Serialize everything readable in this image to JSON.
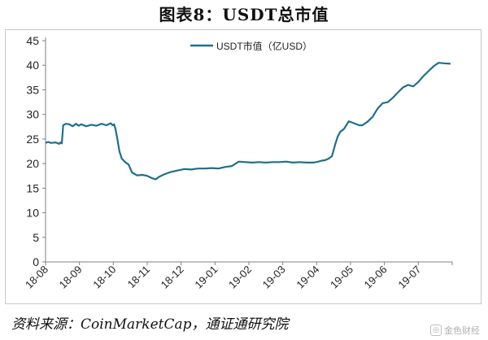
{
  "chart_title": "图表8：USDT总市值",
  "source_text": "资料来源：CoinMarketCap，通证通研究院",
  "watermark": {
    "icon": "coin-icon",
    "text": "金色财经"
  },
  "colors": {
    "series": "#1f6f8b",
    "axis": "#808080",
    "grid": "#808080"
  },
  "chart_data": {
    "type": "line",
    "title": "",
    "xlabel": "",
    "ylabel": "",
    "ylim": [
      0,
      45
    ],
    "yticks": [
      0,
      5,
      10,
      15,
      20,
      25,
      30,
      35,
      40,
      45
    ],
    "x_tick_labels": [
      "18-08",
      "18-09",
      "18-10",
      "18-11",
      "18-12",
      "19-01",
      "19-02",
      "19-03",
      "19-04",
      "19-05",
      "19-06",
      "19-07"
    ],
    "grid": false,
    "legend_position": "top-right",
    "series": [
      {
        "name": "USDT市值（亿USD）",
        "x": [
          0,
          0.08,
          0.16,
          0.3,
          0.4,
          0.44,
          0.48,
          0.52,
          0.6,
          0.7,
          0.8,
          0.9,
          0.98,
          1.05,
          1.2,
          1.35,
          1.5,
          1.65,
          1.8,
          1.92,
          1.98,
          2.02,
          2.06,
          2.12,
          2.18,
          2.25,
          2.35,
          2.45,
          2.55,
          2.7,
          2.85,
          3.0,
          3.15,
          3.25,
          3.35,
          3.5,
          3.7,
          3.9,
          4.1,
          4.3,
          4.5,
          4.7,
          4.9,
          5.1,
          5.3,
          5.5,
          5.7,
          5.9,
          6.1,
          6.3,
          6.5,
          6.7,
          6.9,
          7.1,
          7.3,
          7.5,
          7.7,
          7.9,
          8.05,
          8.15,
          8.25,
          8.35,
          8.45,
          8.55,
          8.62,
          8.7,
          8.8,
          8.95,
          9.1,
          9.25,
          9.35,
          9.5,
          9.65,
          9.8,
          9.95,
          10.1,
          10.25,
          10.4,
          10.55,
          10.7,
          10.85,
          11.0,
          11.15,
          11.3,
          11.45,
          11.6,
          11.75,
          11.95
        ],
        "values": [
          24.2,
          24.4,
          24.2,
          24.3,
          24.0,
          24.3,
          24.1,
          27.8,
          28.1,
          28.0,
          27.6,
          28.1,
          27.7,
          28.0,
          27.6,
          27.9,
          27.7,
          28.1,
          27.8,
          28.2,
          27.8,
          28.0,
          27.2,
          25.0,
          22.5,
          21.0,
          20.3,
          19.8,
          18.2,
          17.6,
          17.7,
          17.5,
          17.0,
          16.8,
          17.3,
          17.8,
          18.3,
          18.6,
          18.9,
          18.8,
          19.0,
          19.0,
          19.1,
          19.0,
          19.3,
          19.5,
          20.4,
          20.3,
          20.2,
          20.3,
          20.2,
          20.3,
          20.3,
          20.4,
          20.2,
          20.3,
          20.2,
          20.2,
          20.4,
          20.6,
          20.7,
          21.0,
          21.5,
          24.0,
          25.5,
          26.5,
          27.0,
          28.6,
          28.2,
          27.8,
          27.8,
          28.5,
          29.5,
          31.2,
          32.3,
          32.5,
          33.4,
          34.5,
          35.5,
          36.0,
          35.7,
          36.6,
          37.8,
          38.8,
          39.8,
          40.5,
          40.4,
          40.3
        ]
      }
    ]
  }
}
